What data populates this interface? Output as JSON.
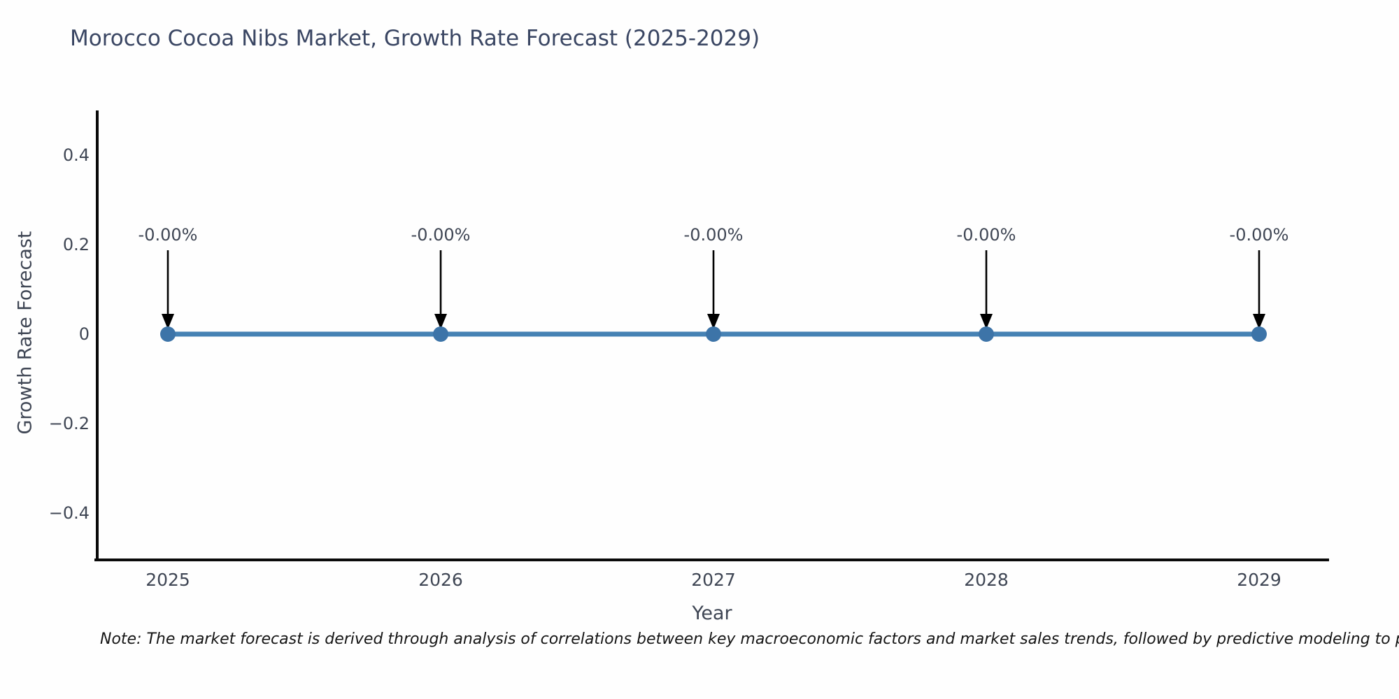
{
  "figure": {
    "title": "Morocco Cocoa Nibs Market, Growth Rate Forecast (2025-2029)",
    "footnote": "Note: The market forecast is derived through analysis of correlations between key macroeconomic factors and market sales trends, followed by predictive modeling to project future sales",
    "colors": {
      "background": "#fefefe",
      "title": "#3a4663",
      "tick_label": "#3f4654",
      "axis_spine": "#0a0a0a",
      "line": "#4682b4",
      "marker": "#3d74a8",
      "annotation_text": "#3f4654",
      "arrow": "#000000",
      "footnote_text": "#151515"
    }
  },
  "chart_data": {
    "type": "line",
    "title": "Morocco Cocoa Nibs Market, Growth Rate Forecast (2025-2029)",
    "xlabel": "Year",
    "ylabel": "Growth Rate Forecast",
    "x": [
      2025,
      2026,
      2027,
      2028,
      2029
    ],
    "series": [
      {
        "name": "Growth Rate Forecast",
        "values": [
          0,
          0,
          0,
          0,
          0
        ]
      }
    ],
    "point_labels": [
      "-0.00%",
      "-0.00%",
      "-0.00%",
      "-0.00%",
      "-0.00%"
    ],
    "xticks": {
      "values": [
        2025,
        2026,
        2027,
        2028,
        2029
      ],
      "labels": [
        "2025",
        "2026",
        "2027",
        "2028",
        "2029"
      ]
    },
    "yticks": {
      "values": [
        0.4,
        0.2,
        0,
        -0.2,
        -0.4
      ],
      "labels": [
        "0.4",
        "0.2",
        "0",
        "−0.2",
        "−0.4"
      ]
    },
    "ylim": [
      -0.5,
      0.5
    ],
    "grid": false,
    "legend": "none",
    "annotation_style": "value label above each point with downward black arrow"
  }
}
